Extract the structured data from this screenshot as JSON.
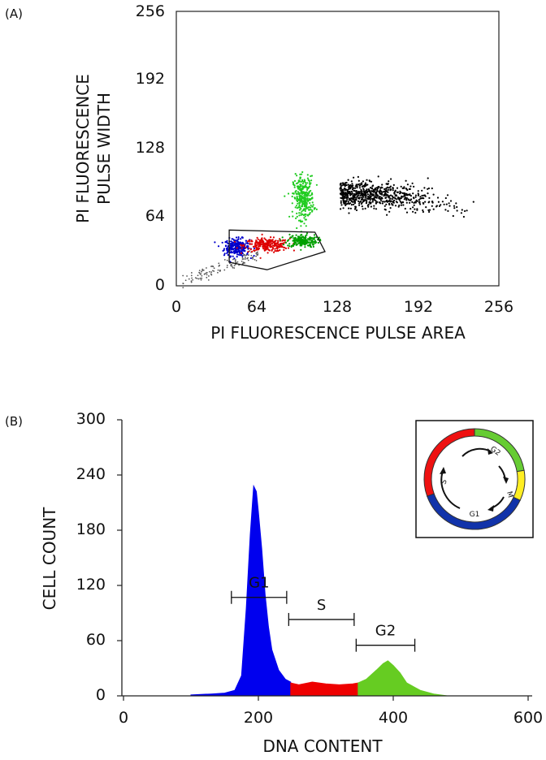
{
  "chart_data": [
    {
      "panel_label": "(A)",
      "type": "scatter",
      "xlabel": "PI FLUORESCENCE PULSE AREA",
      "ylabel_lines": [
        "PI FLUORESCENCE",
        "PULSE WIDTH"
      ],
      "xlim": [
        0,
        256
      ],
      "ylim": [
        0,
        256
      ],
      "xticks": [
        "0",
        "64",
        "128",
        "192",
        "256"
      ],
      "yticks": [
        "0",
        "64",
        "128",
        "192",
        "256"
      ],
      "series": [
        {
          "color": "#0000cc",
          "center": [
            48,
            36
          ],
          "spread": [
            5,
            4
          ],
          "count": 260
        },
        {
          "color": "#dd0000",
          "center": [
            72,
            38
          ],
          "spread": [
            9,
            3
          ],
          "count": 260
        },
        {
          "color": "#00a000",
          "center": [
            100,
            42
          ],
          "spread": [
            6,
            3
          ],
          "count": 200
        },
        {
          "color": "#22cc22",
          "center": [
            101,
            82
          ],
          "spread": [
            4,
            10
          ],
          "count": 320
        },
        {
          "color": "#000000",
          "center": [
            145,
            88
          ],
          "spread": [
            22,
            6
          ],
          "count": 700
        }
      ],
      "gate_polygon": [
        [
          42,
          52
        ],
        [
          110,
          50
        ],
        [
          118,
          32
        ],
        [
          72,
          15
        ],
        [
          42,
          22
        ]
      ]
    },
    {
      "panel_label": "(B)",
      "type": "area",
      "xlabel": "DNA CONTENT",
      "ylabel": "CELL COUNT",
      "xlim": [
        0,
        600
      ],
      "ylim": [
        0,
        300
      ],
      "xticks": [
        "0",
        "200",
        "400",
        "600"
      ],
      "yticks": [
        "0",
        "60",
        "120",
        "180",
        "240",
        "300"
      ],
      "series": [
        {
          "phase": "G1",
          "color": "#0000ee",
          "x": [
            100,
            130,
            150,
            165,
            175,
            182,
            188,
            193,
            197,
            200,
            205,
            210,
            215,
            220,
            230,
            240,
            248
          ],
          "y": [
            1,
            2,
            3,
            6,
            22,
            95,
            175,
            228,
            222,
            200,
            160,
            110,
            75,
            50,
            28,
            18,
            15
          ]
        },
        {
          "phase": "S",
          "color": "#ee0000",
          "x": [
            248,
            260,
            280,
            300,
            320,
            340,
            348
          ],
          "y": [
            14,
            12,
            15,
            13,
            12,
            13,
            14
          ]
        },
        {
          "phase": "G2",
          "color": "#66cc22",
          "x": [
            348,
            360,
            375,
            385,
            392,
            400,
            410,
            420,
            440,
            460,
            480
          ],
          "y": [
            14,
            18,
            28,
            35,
            38,
            33,
            25,
            14,
            6,
            2,
            0
          ]
        }
      ],
      "brackets": [
        {
          "label": "G1",
          "x": [
            160,
            242
          ],
          "y": 107
        },
        {
          "label": "S",
          "x": [
            245,
            342
          ],
          "y": 83
        },
        {
          "label": "G2",
          "x": [
            345,
            432
          ],
          "y": 55
        }
      ],
      "inset": {
        "arcs": [
          {
            "phase": "S",
            "color": "#ee1111"
          },
          {
            "phase": "G2",
            "color": "#66cc33"
          },
          {
            "phase": "M",
            "color": "#ffee22"
          },
          {
            "phase": "G1",
            "color": "#1133aa"
          }
        ],
        "labels": [
          "S",
          "G2",
          "M",
          "G1"
        ]
      }
    }
  ]
}
